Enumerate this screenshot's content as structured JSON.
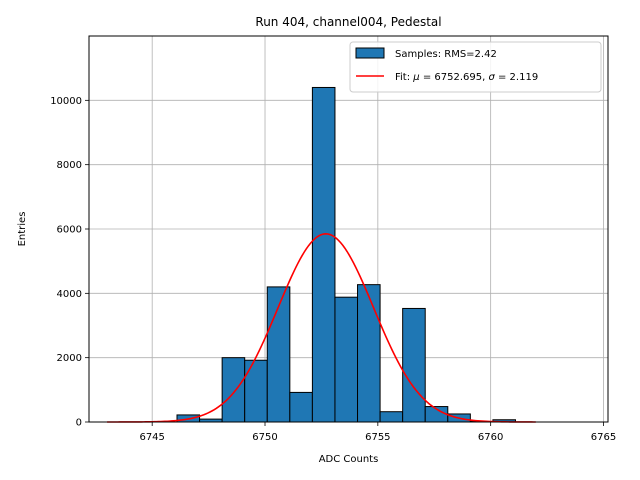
{
  "chart_data": {
    "type": "bar",
    "title": "Run 404, channel004, Pedestal",
    "xlabel": "ADC Counts",
    "ylabel": "Entries",
    "xlim": [
      6742.2,
      6765.2
    ],
    "ylim": [
      0,
      12000
    ],
    "x_ticks": [
      6745,
      6750,
      6755,
      6760,
      6765
    ],
    "y_ticks": [
      0,
      2000,
      4000,
      6000,
      8000,
      10000
    ],
    "grid": true,
    "legend_position": "top-right",
    "series": [
      {
        "name": "Samples: RMS=2.42",
        "kind": "histogram",
        "color": "#1f77b4",
        "edge_color": "#000000",
        "bins": [
          {
            "left": 6746.1,
            "right": 6747.1,
            "count": 220
          },
          {
            "left": 6747.1,
            "right": 6748.1,
            "count": 90
          },
          {
            "left": 6748.1,
            "right": 6749.1,
            "count": 2000
          },
          {
            "left": 6749.1,
            "right": 6750.1,
            "count": 1920
          },
          {
            "left": 6750.1,
            "right": 6751.1,
            "count": 4200
          },
          {
            "left": 6751.1,
            "right": 6752.1,
            "count": 920
          },
          {
            "left": 6752.1,
            "right": 6753.1,
            "count": 10400
          },
          {
            "left": 6753.1,
            "right": 6754.1,
            "count": 3880
          },
          {
            "left": 6754.1,
            "right": 6755.1,
            "count": 4270
          },
          {
            "left": 6755.1,
            "right": 6756.1,
            "count": 320
          },
          {
            "left": 6756.1,
            "right": 6757.1,
            "count": 3530
          },
          {
            "left": 6757.1,
            "right": 6758.1,
            "count": 480
          },
          {
            "left": 6758.1,
            "right": 6759.1,
            "count": 250
          },
          {
            "left": 6759.1,
            "right": 6760.1,
            "count": 15
          },
          {
            "left": 6760.1,
            "right": 6761.1,
            "count": 70
          }
        ]
      },
      {
        "name_prefix": "Fit: ",
        "name_mu": "μ",
        "name_mid": " = 6752.695, ",
        "name_sigma": "σ",
        "name_suffix": " = 2.119",
        "kind": "gaussian_fit",
        "color": "#ff0000",
        "mu": 6752.695,
        "sigma": 2.119,
        "amplitude": 5850,
        "x_range": [
          6743.0,
          6762.0
        ]
      }
    ]
  }
}
